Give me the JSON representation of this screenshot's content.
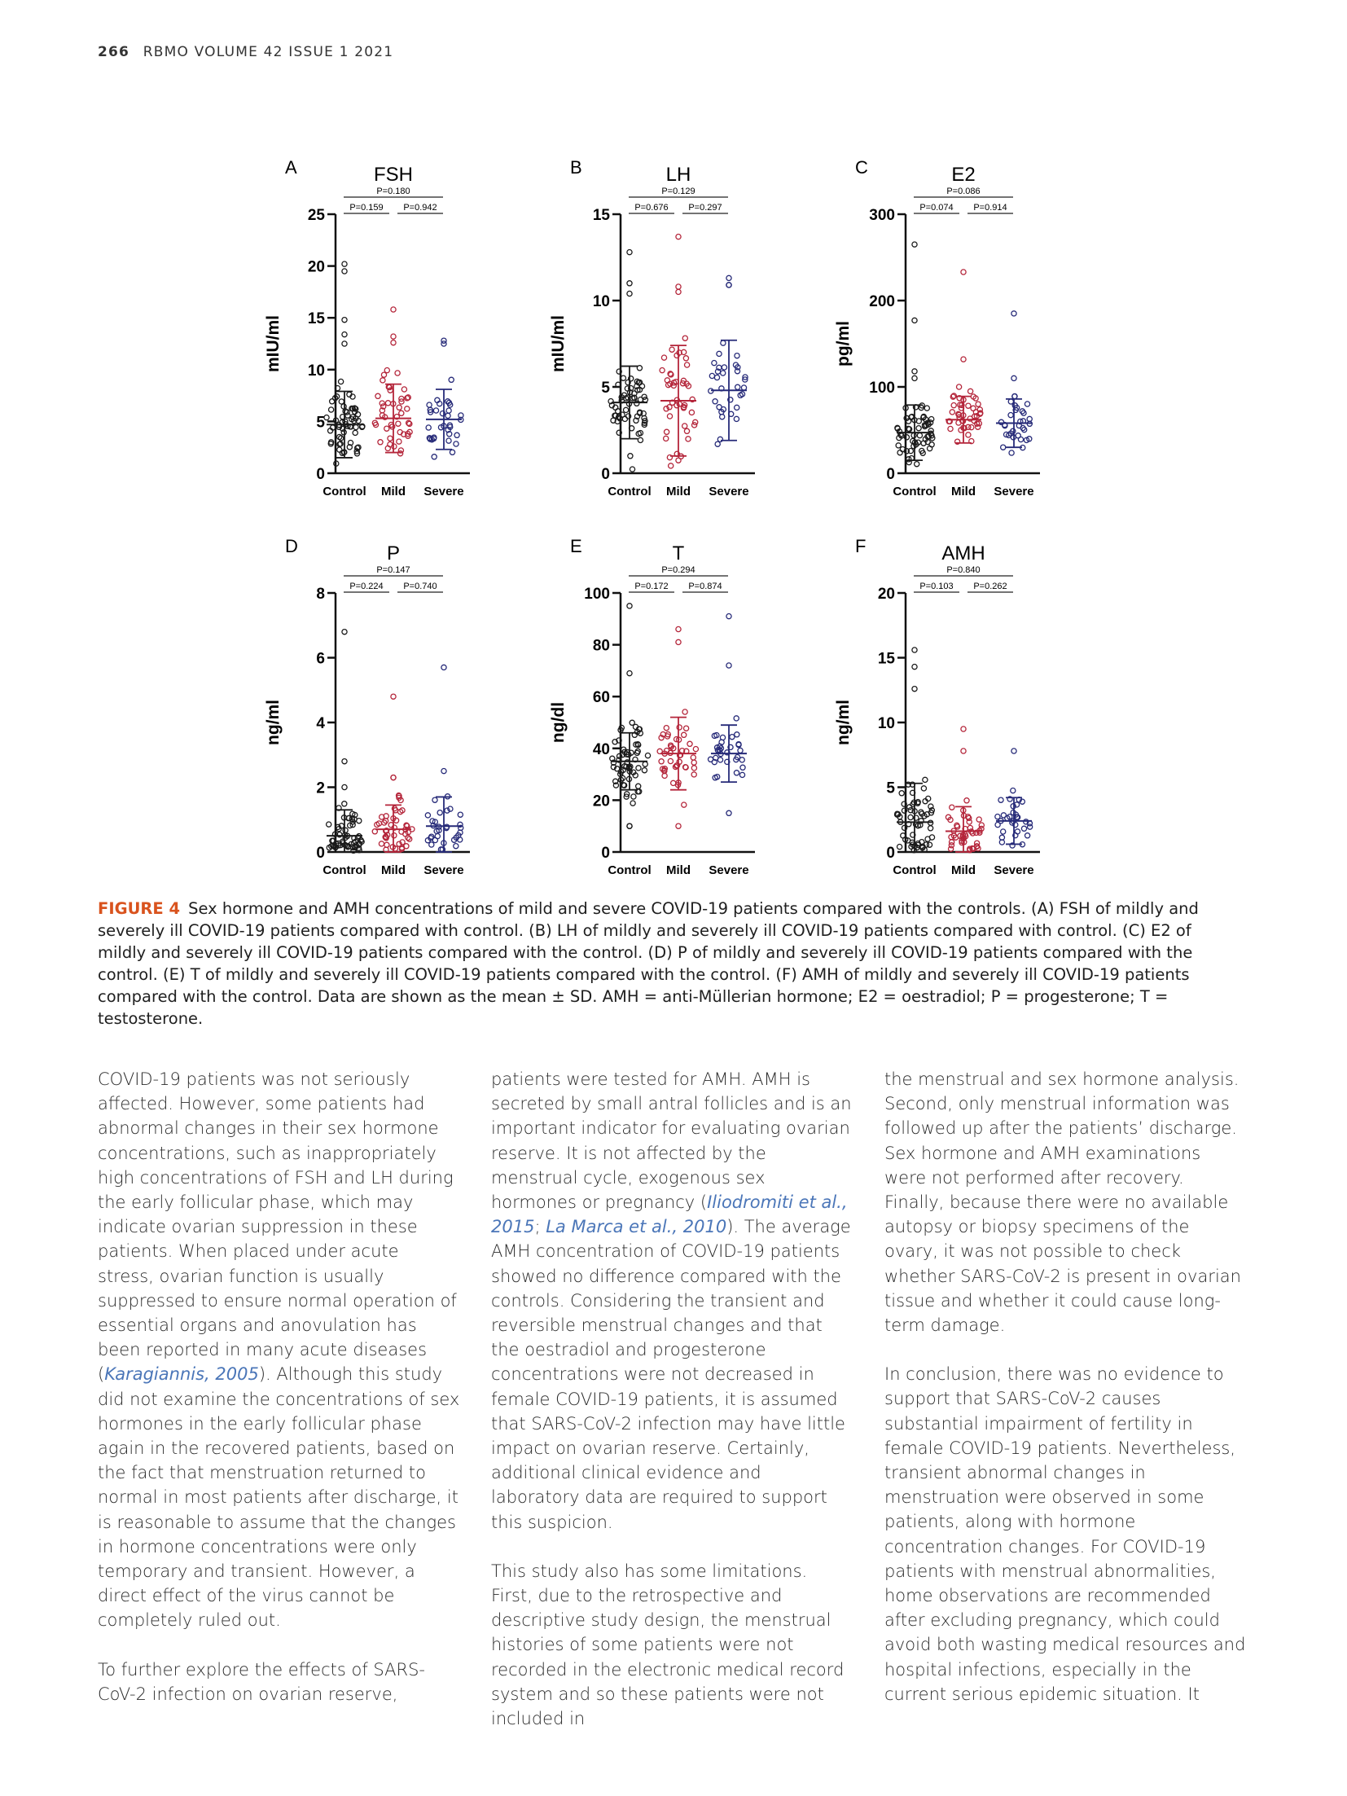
{
  "header": {
    "page": "266",
    "journal": "RBMO  VOLUME 42  ISSUE 1  2021"
  },
  "figure": {
    "colors": {
      "Control": "#1a1a1a",
      "Mild": "#b4253a",
      "Severe": "#262a78"
    },
    "categories": [
      "Control",
      "Mild",
      "Severe"
    ],
    "panels": [
      {
        "letter": "A",
        "title": "FSH",
        "ylabel": "mIU/ml",
        "ylim": [
          0,
          25
        ],
        "yticks": [
          "0",
          "5",
          "10",
          "15",
          "20",
          "25"
        ],
        "p_top": "P=0.180",
        "p_left": "P=0.159",
        "p_right": "P=0.942",
        "mean": [
          4.7,
          5.3,
          5.2
        ],
        "sd": [
          3.2,
          3.3,
          2.9
        ],
        "n": [
          60,
          45,
          32
        ],
        "outliers": [
          [
            20.2,
            19.5,
            14.8,
            13.4,
            12.5
          ],
          [
            15.8,
            13.2,
            12.6
          ],
          [
            12.8,
            12.5
          ]
        ]
      },
      {
        "letter": "B",
        "title": "LH",
        "ylabel": "mIU/ml",
        "ylim": [
          0,
          15
        ],
        "yticks": [
          "0",
          "5",
          "10",
          "15"
        ],
        "p_top": "P=0.129",
        "p_left": "P=0.676",
        "p_right": "P=0.297",
        "mean": [
          4.1,
          4.2,
          4.8
        ],
        "sd": [
          2.1,
          3.2,
          2.9
        ],
        "n": [
          60,
          45,
          32
        ],
        "outliers": [
          [
            12.8,
            11.0,
            10.4
          ],
          [
            13.7,
            10.8,
            10.5
          ],
          [
            11.3,
            10.9,
            10.9
          ]
        ]
      },
      {
        "letter": "C",
        "title": "E2",
        "ylabel": "pg/ml",
        "ylim": [
          0,
          300
        ],
        "yticks": [
          "0",
          "100",
          "200",
          "300"
        ],
        "p_top": "P=0.086",
        "p_left": "P=0.074",
        "p_right": "P=0.914",
        "mean": [
          47,
          62,
          58
        ],
        "sd": [
          32,
          27,
          28
        ],
        "n": [
          60,
          45,
          32
        ],
        "outliers": [
          [
            265,
            177,
            118,
            110
          ],
          [
            233,
            132
          ],
          [
            185,
            110
          ]
        ]
      },
      {
        "letter": "D",
        "title": "P",
        "ylabel": "ng/ml",
        "ylim": [
          0,
          8
        ],
        "yticks": [
          "0",
          "2",
          "4",
          "6",
          "8"
        ],
        "p_top": "P=0.147",
        "p_left": "P=0.224",
        "p_right": "P=0.740",
        "mean": [
          0.5,
          0.7,
          0.8
        ],
        "sd": [
          0.8,
          0.75,
          0.9
        ],
        "n": [
          60,
          45,
          32
        ],
        "outliers": [
          [
            6.8,
            2.8,
            2.0
          ],
          [
            4.8,
            2.3,
            2.3
          ],
          [
            5.7,
            2.5
          ]
        ]
      },
      {
        "letter": "E",
        "title": "T",
        "ylabel": "ng/dl",
        "ylim": [
          0,
          100
        ],
        "yticks": [
          "0",
          "20",
          "40",
          "60",
          "80",
          "100"
        ],
        "p_top": "P=0.294",
        "p_left": "P=0.172",
        "p_right": "P=0.874",
        "mean": [
          35,
          38,
          38
        ],
        "sd": [
          11,
          14,
          11
        ],
        "n": [
          60,
          45,
          32
        ],
        "outliers": [
          [
            95,
            69,
            10,
            10
          ],
          [
            86,
            81,
            10
          ],
          [
            91,
            72,
            15
          ]
        ]
      },
      {
        "letter": "F",
        "title": "AMH",
        "ylabel": "ng/ml",
        "ylim": [
          0,
          20
        ],
        "yticks": [
          "0",
          "5",
          "10",
          "15",
          "20"
        ],
        "p_top": "P=0.840",
        "p_left": "P=0.103",
        "p_right": "P=0.262",
        "mean": [
          2.3,
          1.6,
          2.4
        ],
        "sd": [
          3.0,
          1.9,
          1.8
        ],
        "n": [
          60,
          45,
          32
        ],
        "outliers": [
          [
            15.6,
            14.3,
            12.6
          ],
          [
            9.5,
            7.8
          ],
          [
            7.8
          ]
        ]
      }
    ]
  },
  "caption": {
    "label": "FIGURE 4",
    "text": "Sex hormone and AMH concentrations of mild and severe COVID-19 patients compared with the controls. (A) FSH of mildly and severely ill COVID-19 patients compared with control. (B) LH of mildly and severely ill COVID-19 patients compared with control. (C) E2 of mildly and severely ill COVID-19 patients compared with the control. (D) P of mildly and severely ill COVID-19 patients compared with the control. (E) T of mildly and severely ill COVID-19 patients compared with the control. (F) AMH of mildly and severely ill COVID-19 patients compared with the control. Data are shown as the mean ± SD. AMH = anti-Müllerian hormone; E2 = oestradiol; P = progesterone; T = testosterone."
  },
  "body": {
    "col1_p1_a": "COVID-19 patients was not seriously affected. However, some patients had abnormal changes in their sex hormone concentrations, such as inappropriately high concentrations of FSH and LH during the early follicular phase, which may indicate ovarian suppression in these patients. When placed under acute stress, ovarian function is usually suppressed to ensure normal operation of essential organs and anovulation has been reported in many acute diseases (",
    "col1_cite1": "Karagiannis, 2005",
    "col1_p1_b": "). Although this study did not examine the concentrations of sex hormones in the early follicular phase again in the recovered patients, based on the fact that menstruation returned to normal in most patients after discharge, it is reasonable to assume that the changes in hormone concentrations were only temporary and transient. However, a direct effect of the virus cannot be completely ruled out.",
    "col1_p2": "To further explore the effects of SARS-CoV-2 infection on ovarian reserve,",
    "col2_p1_a": "patients were tested for AMH. AMH is secreted by small antral follicles and is an important indicator for evaluating ovarian reserve. It is not affected by the menstrual cycle, exogenous sex hormones or pregnancy (",
    "col2_cite1": "Iliodromiti et al., 2015",
    "col2_sep": "; ",
    "col2_cite2": "La Marca et al., 2010",
    "col2_p1_b": "). The average AMH concentration of COVID-19 patients showed no difference compared with the controls. Considering the transient and reversible menstrual changes and that the oestradiol and progesterone concentrations were not decreased in female COVID-19 patients, it is assumed that SARS-CoV-2 infection may have little impact on ovarian reserve. Certainly, additional clinical evidence and laboratory data are required to support this suspicion.",
    "col2_p2": "This study also has some limitations. First, due to the retrospective and descriptive study design, the menstrual histories of some patients were not recorded in the electronic medical record system and so these patients were not included in",
    "col3_p1": "the menstrual and sex hormone analysis. Second, only menstrual information was followed up after the patients’ discharge. Sex hormone and AMH examinations were not performed after recovery. Finally, because there were no available autopsy or biopsy specimens of the ovary, it was not possible to check whether SARS-CoV-2 is present in ovarian tissue and whether it could cause long-term damage.",
    "col3_p2": "In conclusion, there was no evidence to support that SARS-CoV-2 causes substantial impairment of fertility in female COVID-19 patients. Nevertheless, transient abnormal changes in menstruation were observed in some patients, along with hormone concentration changes. For COVID-19 patients with menstrual abnormalities, home observations are recommended after excluding pregnancy, which could avoid both wasting medical resources and hospital infections, especially in the current serious epidemic situation. It"
  }
}
